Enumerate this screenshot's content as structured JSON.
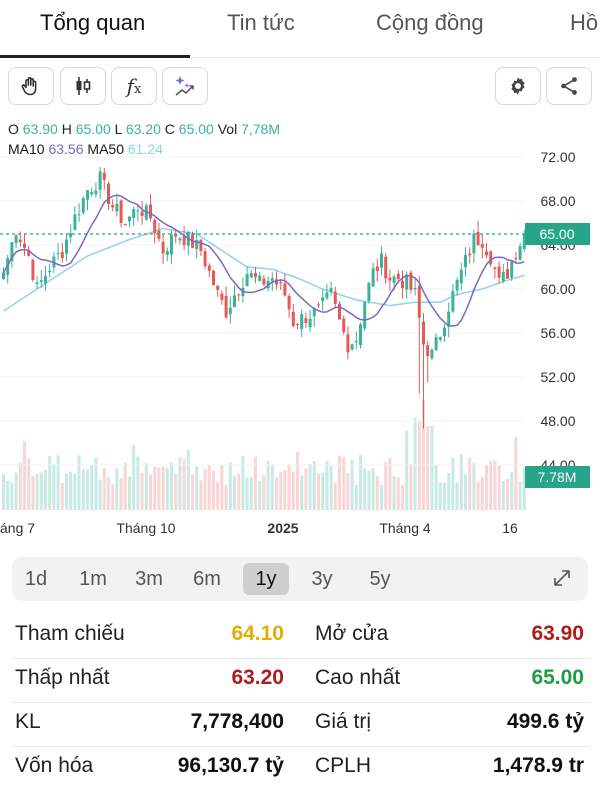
{
  "tabs": [
    {
      "label": "Tổng quan"
    },
    {
      "label": "Tin tức"
    },
    {
      "label": "Cộng đồng"
    },
    {
      "label": "Hồ"
    }
  ],
  "toolbar": {
    "left_icons": [
      "hand-icon",
      "candlestick-icon",
      "function-icon",
      "sparkle-chart-icon"
    ],
    "function_glyph": "fx",
    "right_icons": [
      "gear-icon",
      "share-icon"
    ]
  },
  "ohlc": {
    "o_label": "O",
    "o_value": "63.90",
    "h_label": "H",
    "h_value": "65.00",
    "l_label": "L",
    "l_value": "63.20",
    "c_label": "C",
    "c_value": "65.00",
    "vol_label": "Vol",
    "vol_value": "7,78M"
  },
  "ma": {
    "ma10_label": "MA10",
    "ma10_value": "63.56",
    "ma50_label": "MA50",
    "ma50_value": "61.24"
  },
  "colors": {
    "up": "#3bb39a",
    "down": "#e65a56",
    "ma10": "#7b68c6",
    "ma50": "#8fd3ef",
    "last_price_bg": "#27a58a",
    "ref": "#e0b000",
    "low": "#b01c1c",
    "high": "#1a9e3f"
  },
  "chart_data": {
    "type": "candlestick",
    "y_ticks": [
      "72.00",
      "68.00",
      "64.00",
      "60.00",
      "56.00",
      "52.00",
      "48.00",
      "44.00"
    ],
    "ylim": [
      44,
      74
    ],
    "x_labels": [
      "áng 7",
      "Tháng 10",
      "2025",
      "Tháng 4",
      "16"
    ],
    "last_price_label": "65.00",
    "last_price": 65.0,
    "last_volume_label": "7.78M",
    "anchors_close": [
      [
        0,
        61.5
      ],
      [
        3,
        65.5
      ],
      [
        6,
        63.0
      ],
      [
        8,
        60.0
      ],
      [
        11,
        62.0
      ],
      [
        14,
        63.5
      ],
      [
        17,
        66.5
      ],
      [
        20,
        69.0
      ],
      [
        23,
        70.0
      ],
      [
        26,
        67.5
      ],
      [
        29,
        66.0
      ],
      [
        32,
        67.5
      ],
      [
        35,
        66.5
      ],
      [
        38,
        63.5
      ],
      [
        41,
        65.0
      ],
      [
        44,
        64.5
      ],
      [
        47,
        63.5
      ],
      [
        49,
        61.5
      ],
      [
        51,
        59.5
      ],
      [
        53,
        58.0
      ],
      [
        55,
        59.5
      ],
      [
        58,
        61.5
      ],
      [
        61,
        60.5
      ],
      [
        64,
        61.0
      ],
      [
        67,
        59.5
      ],
      [
        69,
        57.0
      ],
      [
        72,
        57.5
      ],
      [
        75,
        58.0
      ],
      [
        78,
        59.5
      ],
      [
        80,
        57.0
      ],
      [
        82,
        55.0
      ],
      [
        84,
        55.5
      ],
      [
        86,
        59.0
      ],
      [
        88,
        61.5
      ],
      [
        90,
        62.5
      ],
      [
        92,
        61.0
      ],
      [
        94,
        61.0
      ],
      [
        96,
        60.5
      ],
      [
        98,
        59.5
      ],
      [
        100,
        55.0
      ],
      [
        102,
        54.0
      ],
      [
        104,
        56.0
      ],
      [
        106,
        58.5
      ],
      [
        108,
        60.5
      ],
      [
        110,
        62.5
      ],
      [
        112,
        64.5
      ],
      [
        114,
        64.5
      ],
      [
        116,
        63.0
      ],
      [
        118,
        60.5
      ],
      [
        120,
        61.5
      ],
      [
        122,
        63.5
      ],
      [
        124,
        65.0
      ]
    ],
    "ma50_anchors": [
      [
        0,
        58.0
      ],
      [
        10,
        60.5
      ],
      [
        20,
        63.0
      ],
      [
        30,
        64.5
      ],
      [
        38,
        65.5
      ],
      [
        46,
        65.0
      ],
      [
        52,
        63.5
      ],
      [
        58,
        62.0
      ],
      [
        64,
        61.8
      ],
      [
        70,
        61.0
      ],
      [
        76,
        60.0
      ],
      [
        84,
        59.0
      ],
      [
        92,
        58.5
      ],
      [
        98,
        58.8
      ],
      [
        104,
        58.8
      ],
      [
        108,
        59.5
      ],
      [
        114,
        60.0
      ],
      [
        120,
        60.8
      ],
      [
        124,
        61.24
      ]
    ]
  },
  "range": {
    "options": [
      "1d",
      "1m",
      "3m",
      "6m",
      "1y",
      "3y",
      "5y"
    ],
    "active": "1y"
  },
  "stats": {
    "ref_label": "Tham chiếu",
    "ref_value": "64.10",
    "open_label": "Mở cửa",
    "open_value": "63.90",
    "low_label": "Thấp nhất",
    "low_value": "63.20",
    "high_label": "Cao nhất",
    "high_value": "65.00",
    "kl_label": "KL",
    "kl_value": "7,778,400",
    "gt_label": "Giá trị",
    "gt_value": "499.6 tỷ",
    "cap_label": "Vốn hóa",
    "cap_value": "96,130.7 tỷ",
    "cplh_label": "CPLH",
    "cplh_value": "1,478.9 tr"
  }
}
